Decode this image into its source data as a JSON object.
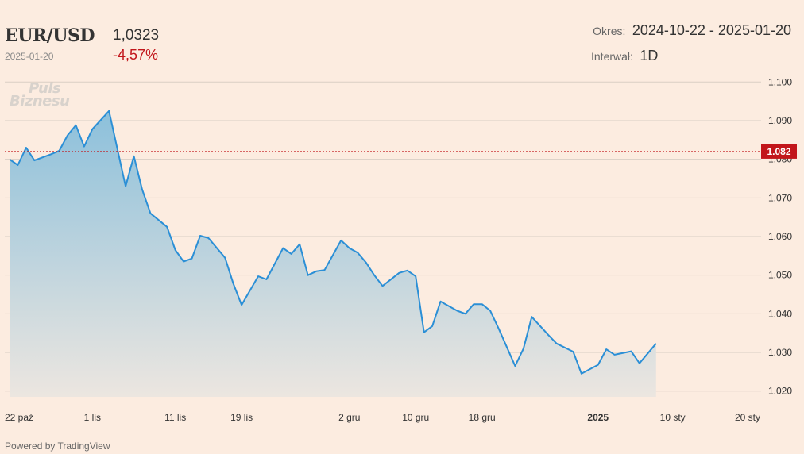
{
  "header": {
    "symbol": "EUR/USD",
    "date": "2025-01-20",
    "price": "1,0323",
    "change": "-4,57%",
    "period_label": "Okres:",
    "period_value": "2024-10-22 - 2025-01-20",
    "interval_label": "Interwał:",
    "interval_value": "1D"
  },
  "watermark": {
    "line1": "Puls",
    "line2": "Biznesu"
  },
  "footer": {
    "powered": "Powered by TradingView"
  },
  "colors": {
    "line": "#2b8fd6",
    "area_top": "#8cc0db",
    "area_bottom": "#ece6e0",
    "grid": "#d9cec4",
    "ref_line": "#c2161b",
    "ref_badge": "#c2161b",
    "change": "#c2161b"
  },
  "chart_data": {
    "type": "area",
    "ylim": [
      1.0185,
      1.1015
    ],
    "y_ticks": [
      "1.100",
      "1.090",
      "1.080",
      "1.070",
      "1.060",
      "1.050",
      "1.040",
      "1.030",
      "1.020"
    ],
    "reference_value": 1.082,
    "reference_label": "1.082",
    "x_tick_labels": [
      {
        "date": "2024-10-22",
        "label": "22 paź",
        "bold": false
      },
      {
        "date": "2024-11-01",
        "label": "1 lis",
        "bold": false
      },
      {
        "date": "2024-11-11",
        "label": "11 lis",
        "bold": false
      },
      {
        "date": "2024-11-19",
        "label": "19 lis",
        "bold": false
      },
      {
        "date": "2024-12-02",
        "label": "2 gru",
        "bold": false
      },
      {
        "date": "2024-12-10",
        "label": "10 gru",
        "bold": false
      },
      {
        "date": "2024-12-18",
        "label": "18 gru",
        "bold": false
      },
      {
        "date": "2025-01-01",
        "label": "2025",
        "bold": true
      },
      {
        "date": "2025-01-10",
        "label": "10 sty",
        "bold": false
      },
      {
        "date": "2025-01-20",
        "label": "20 sty",
        "bold": false
      }
    ],
    "series": [
      {
        "points": [
          [
            "2024-10-22",
            1.08
          ],
          [
            "2024-10-23",
            1.0785
          ],
          [
            "2024-10-24",
            1.083
          ],
          [
            "2024-10-25",
            1.0797
          ],
          [
            "2024-10-27",
            1.0813
          ],
          [
            "2024-10-28",
            1.0822
          ],
          [
            "2024-10-29",
            1.0862
          ],
          [
            "2024-10-30",
            1.0888
          ],
          [
            "2024-10-31",
            1.0833
          ],
          [
            "2024-11-01",
            1.0878
          ],
          [
            "2024-11-03",
            1.0925
          ],
          [
            "2024-11-05",
            1.073
          ],
          [
            "2024-11-06",
            1.0808
          ],
          [
            "2024-11-07",
            1.0722
          ],
          [
            "2024-11-08",
            1.066
          ],
          [
            "2024-11-10",
            1.0625
          ],
          [
            "2024-11-11",
            1.0565
          ],
          [
            "2024-11-12",
            1.0535
          ],
          [
            "2024-11-13",
            1.0543
          ],
          [
            "2024-11-14",
            1.0602
          ],
          [
            "2024-11-15",
            1.0596
          ],
          [
            "2024-11-17",
            1.0545
          ],
          [
            "2024-11-18",
            1.0478
          ],
          [
            "2024-11-19",
            1.0423
          ],
          [
            "2024-11-21",
            1.0497
          ],
          [
            "2024-11-22",
            1.0489
          ],
          [
            "2024-11-24",
            1.057
          ],
          [
            "2024-11-25",
            1.0555
          ],
          [
            "2024-11-26",
            1.058
          ],
          [
            "2024-11-27",
            1.05
          ],
          [
            "2024-11-28",
            1.051
          ],
          [
            "2024-11-29",
            1.0513
          ],
          [
            "2024-12-01",
            1.059
          ],
          [
            "2024-12-02",
            1.057
          ],
          [
            "2024-12-03",
            1.0558
          ],
          [
            "2024-12-04",
            1.0533
          ],
          [
            "2024-12-05",
            1.05
          ],
          [
            "2024-12-06",
            1.0472
          ],
          [
            "2024-12-08",
            1.0506
          ],
          [
            "2024-12-09",
            1.0512
          ],
          [
            "2024-12-10",
            1.0497
          ],
          [
            "2024-12-11",
            1.0352
          ],
          [
            "2024-12-12",
            1.0368
          ],
          [
            "2024-12-13",
            1.0432
          ],
          [
            "2024-12-15",
            1.0408
          ],
          [
            "2024-12-16",
            1.04
          ],
          [
            "2024-12-17",
            1.0425
          ],
          [
            "2024-12-18",
            1.0425
          ],
          [
            "2024-12-19",
            1.0408
          ],
          [
            "2024-12-20",
            1.0362
          ],
          [
            "2024-12-22",
            1.0265
          ],
          [
            "2024-12-23",
            1.031
          ],
          [
            "2024-12-24",
            1.0392
          ],
          [
            "2024-12-26",
            1.0345
          ],
          [
            "2024-12-27",
            1.0323
          ],
          [
            "2024-12-29",
            1.0302
          ],
          [
            "2024-12-30",
            1.0245
          ],
          [
            "2025-01-01",
            1.0268
          ],
          [
            "2025-01-02",
            1.0308
          ],
          [
            "2025-01-03",
            1.0294
          ],
          [
            "2025-01-05",
            1.0303
          ],
          [
            "2025-01-06",
            1.0272
          ],
          [
            "2025-01-08",
            1.0323
          ]
        ]
      }
    ]
  }
}
